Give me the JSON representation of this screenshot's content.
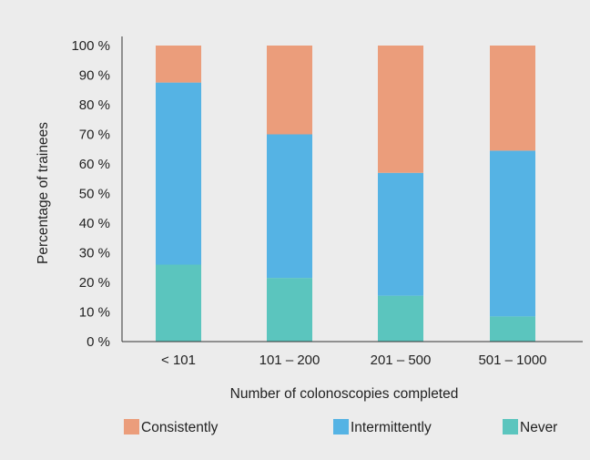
{
  "chart_data": {
    "type": "bar",
    "stacked": true,
    "categories": [
      "< 101",
      "101 – 200",
      "201 – 500",
      "501 – 1000"
    ],
    "series": [
      {
        "name": "Never",
        "values": [
          26,
          21.5,
          15.5,
          8.5
        ],
        "color": "#5bc5be"
      },
      {
        "name": "Intermittently",
        "values": [
          61.5,
          48.5,
          41.5,
          56
        ],
        "color": "#55b3e4"
      },
      {
        "name": "Consistently",
        "values": [
          12.5,
          30,
          43,
          35.5
        ],
        "color": "#eb9d7b"
      }
    ],
    "legend_order": [
      "Consistently",
      "Intermittently",
      "Never"
    ],
    "xlabel": "Number of colonoscopies completed",
    "ylabel": "Percentage of trainees",
    "ylim": [
      0,
      100
    ],
    "yticks": [
      "0 %",
      "10 %",
      "20 %",
      "30 %",
      "40 %",
      "50 %",
      "60 %",
      "70 %",
      "80 %",
      "90 %",
      "100 %"
    ],
    "grid": false,
    "legend_position": "bottom"
  }
}
